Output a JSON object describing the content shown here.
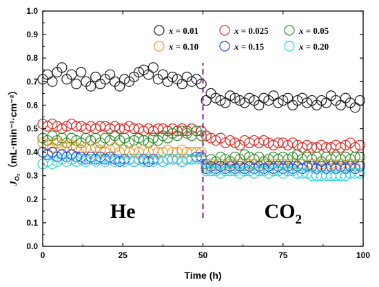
{
  "chart_data": {
    "type": "scatter",
    "ylabel_main": "J",
    "ylabel_sub": "O₂",
    "ylabel_unit": "（mL·min⁻¹·cm⁻²）",
    "xlabel": "Time (h)",
    "xlim": [
      0,
      100
    ],
    "ylim": [
      0.0,
      1.0
    ],
    "xticks": [
      "0",
      "25",
      "50",
      "75",
      "100"
    ],
    "yticks": [
      "0.0",
      "0.1",
      "0.2",
      "0.3",
      "0.4",
      "0.5",
      "0.6",
      "0.7",
      "0.8",
      "0.9",
      "1.0"
    ],
    "marker": "open-circle",
    "divider_x": 50,
    "divider_color": "#7a1f8f",
    "region_labels": [
      {
        "text": "He",
        "sub": "",
        "x": 25,
        "y": 0.12
      },
      {
        "text": "CO",
        "sub": "2",
        "x": 75,
        "y": 0.12
      }
    ],
    "legend": {
      "position": "top-right",
      "columns": 3
    },
    "series": [
      {
        "name": "x = 0.01",
        "color": "#1a1a1a",
        "x": [
          0,
          1.5,
          3,
          4.5,
          6,
          7.5,
          9,
          10.5,
          12,
          13.5,
          15,
          16.5,
          18,
          19.5,
          21,
          22.5,
          24,
          25.5,
          27,
          28.5,
          30,
          31.5,
          33,
          34.5,
          36,
          37.5,
          39,
          40.5,
          42,
          43.5,
          45,
          46.5,
          48,
          49.5,
          51,
          52.5,
          54,
          55.5,
          57,
          58.5,
          60,
          61.5,
          63,
          64.5,
          66,
          67.5,
          69,
          70.5,
          72,
          73.5,
          75,
          76.5,
          78,
          79.5,
          81,
          82.5,
          84,
          85.5,
          87,
          88.5,
          90,
          91.5,
          93,
          94.5,
          96,
          97.5,
          99
        ],
        "y": [
          0.71,
          0.73,
          0.7,
          0.74,
          0.76,
          0.71,
          0.73,
          0.69,
          0.74,
          0.7,
          0.68,
          0.72,
          0.69,
          0.71,
          0.73,
          0.7,
          0.68,
          0.71,
          0.7,
          0.72,
          0.74,
          0.75,
          0.73,
          0.76,
          0.71,
          0.73,
          0.7,
          0.72,
          0.71,
          0.69,
          0.72,
          0.7,
          0.71,
          0.69,
          0.62,
          0.65,
          0.63,
          0.62,
          0.61,
          0.64,
          0.63,
          0.62,
          0.61,
          0.63,
          0.62,
          0.6,
          0.63,
          0.62,
          0.64,
          0.61,
          0.62,
          0.63,
          0.6,
          0.62,
          0.63,
          0.61,
          0.62,
          0.6,
          0.62,
          0.61,
          0.64,
          0.62,
          0.6,
          0.63,
          0.61,
          0.59,
          0.62
        ]
      },
      {
        "name": "x = 0.025",
        "color": "#e8231e",
        "x": [
          0,
          1.5,
          3,
          4.5,
          6,
          7.5,
          9,
          10.5,
          12,
          13.5,
          15,
          16.5,
          18,
          19.5,
          21,
          22.5,
          24,
          25.5,
          27,
          28.5,
          30,
          31.5,
          33,
          34.5,
          36,
          37.5,
          39,
          40.5,
          42,
          43.5,
          45,
          46.5,
          48,
          49.5,
          51,
          52.5,
          54,
          55.5,
          57,
          58.5,
          60,
          61.5,
          63,
          64.5,
          66,
          67.5,
          69,
          70.5,
          72,
          73.5,
          75,
          76.5,
          78,
          79.5,
          81,
          82.5,
          84,
          85.5,
          87,
          88.5,
          90,
          91.5,
          93,
          94.5,
          96,
          97.5,
          99
        ],
        "y": [
          0.52,
          0.51,
          0.52,
          0.51,
          0.5,
          0.51,
          0.52,
          0.51,
          0.51,
          0.5,
          0.51,
          0.5,
          0.51,
          0.51,
          0.5,
          0.51,
          0.5,
          0.5,
          0.51,
          0.5,
          0.5,
          0.49,
          0.5,
          0.49,
          0.5,
          0.5,
          0.49,
          0.5,
          0.49,
          0.5,
          0.49,
          0.5,
          0.49,
          0.49,
          0.47,
          0.46,
          0.45,
          0.46,
          0.44,
          0.45,
          0.44,
          0.43,
          0.45,
          0.44,
          0.45,
          0.44,
          0.45,
          0.44,
          0.43,
          0.44,
          0.44,
          0.43,
          0.44,
          0.43,
          0.42,
          0.43,
          0.42,
          0.42,
          0.43,
          0.42,
          0.42,
          0.43,
          0.42,
          0.43,
          0.44,
          0.42,
          0.43
        ]
      },
      {
        "name": "x = 0.05",
        "color": "#2a8a2a",
        "x": [
          0,
          1.5,
          3,
          4.5,
          6,
          7.5,
          9,
          10.5,
          12,
          13.5,
          15,
          16.5,
          18,
          19.5,
          21,
          22.5,
          24,
          25.5,
          27,
          28.5,
          30,
          31.5,
          33,
          34.5,
          36,
          37.5,
          39,
          40.5,
          42,
          43.5,
          45,
          46.5,
          48,
          49.5,
          51,
          52.5,
          54,
          55.5,
          57,
          58.5,
          60,
          61.5,
          63,
          64.5,
          66,
          67.5,
          69,
          70.5,
          72,
          73.5,
          75,
          76.5,
          78,
          79.5,
          81,
          82.5,
          84,
          85.5,
          87,
          88.5,
          90,
          91.5,
          93,
          94.5,
          96,
          97.5,
          99
        ],
        "y": [
          0.46,
          0.45,
          0.47,
          0.45,
          0.46,
          0.44,
          0.46,
          0.45,
          0.44,
          0.46,
          0.45,
          0.46,
          0.44,
          0.46,
          0.45,
          0.47,
          0.45,
          0.46,
          0.44,
          0.45,
          0.46,
          0.45,
          0.44,
          0.46,
          0.45,
          0.47,
          0.46,
          0.48,
          0.47,
          0.49,
          0.48,
          0.47,
          0.49,
          0.47,
          0.35,
          0.37,
          0.36,
          0.38,
          0.37,
          0.36,
          0.38,
          0.37,
          0.39,
          0.38,
          0.37,
          0.38,
          0.36,
          0.37,
          0.38,
          0.37,
          0.38,
          0.37,
          0.38,
          0.39,
          0.37,
          0.38,
          0.37,
          0.38,
          0.36,
          0.38,
          0.37,
          0.38,
          0.37,
          0.38,
          0.37,
          0.38,
          0.38
        ]
      },
      {
        "name": "x = 0.10",
        "color": "#f0961e",
        "x": [
          0,
          1.5,
          3,
          4.5,
          6,
          7.5,
          9,
          10.5,
          12,
          13.5,
          15,
          16.5,
          18,
          19.5,
          21,
          22.5,
          24,
          25.5,
          27,
          28.5,
          30,
          31.5,
          33,
          34.5,
          36,
          37.5,
          39,
          40.5,
          42,
          43.5,
          45,
          46.5,
          48,
          49.5,
          51,
          52.5,
          54,
          55.5,
          57,
          58.5,
          60,
          61.5,
          63,
          64.5,
          66,
          67.5,
          69,
          70.5,
          72,
          73.5,
          75,
          76.5,
          78,
          79.5,
          81,
          82.5,
          84,
          85.5,
          87,
          88.5,
          90,
          91.5,
          93,
          94.5,
          96,
          97.5,
          99
        ],
        "y": [
          0.44,
          0.43,
          0.42,
          0.44,
          0.43,
          0.42,
          0.43,
          0.42,
          0.41,
          0.42,
          0.41,
          0.42,
          0.41,
          0.4,
          0.41,
          0.42,
          0.4,
          0.41,
          0.4,
          0.41,
          0.4,
          0.41,
          0.4,
          0.41,
          0.4,
          0.4,
          0.41,
          0.4,
          0.4,
          0.41,
          0.4,
          0.4,
          0.4,
          0.4,
          0.34,
          0.35,
          0.34,
          0.35,
          0.34,
          0.35,
          0.34,
          0.35,
          0.34,
          0.35,
          0.35,
          0.34,
          0.35,
          0.34,
          0.35,
          0.34,
          0.35,
          0.34,
          0.35,
          0.34,
          0.35,
          0.34,
          0.35,
          0.34,
          0.35,
          0.34,
          0.35,
          0.34,
          0.35,
          0.34,
          0.35,
          0.34,
          0.35
        ]
      },
      {
        "name": "x = 0.15",
        "color": "#1f3fe0",
        "x": [
          0,
          1.5,
          3,
          4.5,
          6,
          7.5,
          9,
          10.5,
          12,
          13.5,
          15,
          16.5,
          18,
          19.5,
          21,
          22.5,
          24,
          25.5,
          27,
          28.5,
          30,
          31.5,
          33,
          34.5,
          36,
          37.5,
          39,
          40.5,
          42,
          43.5,
          45,
          46.5,
          48,
          49.5,
          51,
          52.5,
          54,
          55.5,
          57,
          58.5,
          60,
          61.5,
          63,
          64.5,
          66,
          67.5,
          69,
          70.5,
          72,
          73.5,
          75,
          76.5,
          78,
          79.5,
          81,
          82.5,
          84,
          85.5,
          87,
          88.5,
          90,
          91.5,
          93,
          94.5,
          96,
          97.5,
          99
        ],
        "y": [
          0.4,
          0.39,
          0.4,
          0.38,
          0.39,
          0.38,
          0.39,
          0.38,
          0.38,
          0.37,
          0.38,
          0.37,
          0.38,
          0.37,
          0.38,
          0.37,
          0.36,
          0.37,
          0.37,
          0.36,
          0.37,
          0.37,
          0.36,
          0.37,
          0.37,
          0.36,
          0.37,
          0.37,
          0.37,
          0.36,
          0.37,
          0.37,
          0.38,
          0.38,
          0.33,
          0.34,
          0.33,
          0.34,
          0.33,
          0.34,
          0.33,
          0.34,
          0.33,
          0.34,
          0.33,
          0.34,
          0.33,
          0.34,
          0.33,
          0.34,
          0.33,
          0.34,
          0.33,
          0.34,
          0.33,
          0.34,
          0.34,
          0.33,
          0.34,
          0.33,
          0.34,
          0.33,
          0.34,
          0.33,
          0.34,
          0.33,
          0.34
        ]
      },
      {
        "name": "x = 0.20",
        "color": "#27d3e3",
        "x": [
          0,
          1.5,
          3,
          4.5,
          6,
          7.5,
          9,
          10.5,
          12,
          13.5,
          15,
          16.5,
          18,
          19.5,
          21,
          22.5,
          24,
          25.5,
          27,
          28.5,
          30,
          31.5,
          33,
          34.5,
          36,
          37.5,
          39,
          40.5,
          42,
          43.5,
          45,
          46.5,
          48,
          49.5,
          51,
          52.5,
          54,
          55.5,
          57,
          58.5,
          60,
          61.5,
          63,
          64.5,
          66,
          67.5,
          69,
          70.5,
          72,
          73.5,
          75,
          76.5,
          78,
          79.5,
          81,
          82.5,
          84,
          85.5,
          87,
          88.5,
          90,
          91.5,
          93,
          94.5,
          96,
          97.5,
          99
        ],
        "y": [
          0.35,
          0.36,
          0.35,
          0.36,
          0.37,
          0.36,
          0.37,
          0.36,
          0.37,
          0.36,
          0.37,
          0.36,
          0.37,
          0.36,
          0.37,
          0.36,
          0.37,
          0.36,
          0.37,
          0.36,
          0.37,
          0.36,
          0.37,
          0.36,
          0.37,
          0.36,
          0.37,
          0.37,
          0.37,
          0.36,
          0.37,
          0.37,
          0.37,
          0.37,
          0.32,
          0.32,
          0.32,
          0.31,
          0.32,
          0.32,
          0.32,
          0.31,
          0.32,
          0.32,
          0.31,
          0.32,
          0.32,
          0.31,
          0.32,
          0.32,
          0.31,
          0.32,
          0.32,
          0.31,
          0.31,
          0.31,
          0.3,
          0.3,
          0.3,
          0.3,
          0.3,
          0.3,
          0.3,
          0.3,
          0.31,
          0.31,
          0.31
        ]
      }
    ]
  }
}
